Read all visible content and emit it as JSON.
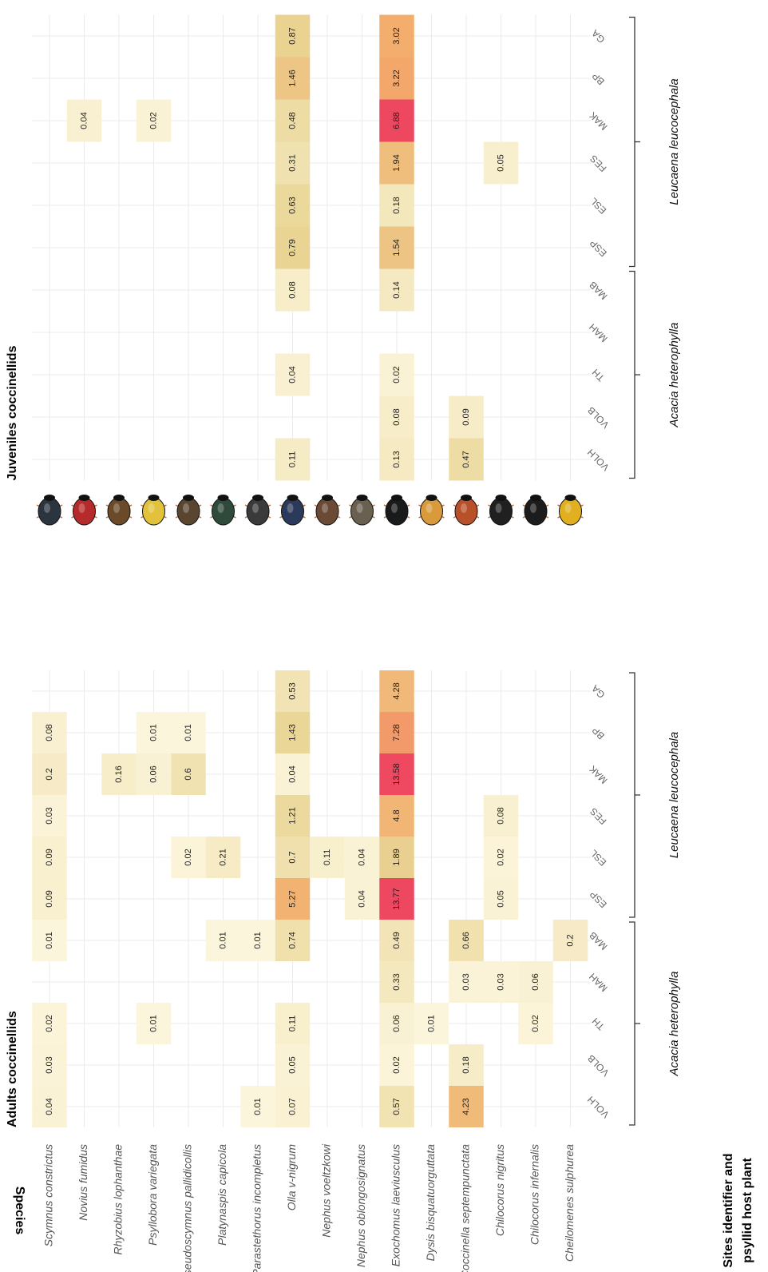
{
  "chart_data": {
    "type": "heatmap",
    "y_label": "Species",
    "x_label": [
      "Sites identifier  and",
      "psyllid host plant"
    ],
    "categories": [
      "Scymnus constrictus",
      "Novius fumidus",
      "Rhyzobius lophanthae",
      "Psyllobora variegata",
      "Pseudoscymnus pallidicollis",
      "Platynaspis capicola",
      "Parastethorus incompletus",
      "Olla v-nigrum",
      "Nephus voeltzkowi",
      "Nephus oblongosignatus",
      "Exochomus laeviusculus",
      "Dysis bisquatuorguttata",
      "Coccinella septempunctata",
      "Chilocorus nigritus",
      "Chilocorus infernalis",
      "Cheilomenes sulphurea"
    ],
    "color_scale": [
      "#fdf8e2",
      "#e9d594",
      "#f3ac6c",
      "#ee4760"
    ],
    "panels": [
      {
        "title": "Adults coccinellids",
        "groups": [
          {
            "name": "Acacia heterophylla",
            "sites": [
              "VOLH",
              "VOLB",
              "TH",
              "MAH",
              "MAB"
            ]
          },
          {
            "name": "Leucaena leucocephala",
            "sites": [
              "ESP",
              "ESL",
              "FES",
              "MAK",
              "BP",
              "GA"
            ]
          }
        ],
        "values": [
          [
            0.04,
            0.03,
            0.02,
            null,
            0.01,
            0.09,
            0.09,
            0.03,
            0.2,
            0.08,
            null
          ],
          [
            null,
            null,
            null,
            null,
            null,
            null,
            null,
            null,
            null,
            null,
            null
          ],
          [
            null,
            null,
            null,
            null,
            null,
            null,
            null,
            null,
            0.16,
            null,
            null
          ],
          [
            null,
            null,
            0.01,
            null,
            null,
            null,
            null,
            null,
            0.06,
            0.01,
            null
          ],
          [
            null,
            null,
            null,
            null,
            null,
            null,
            0.02,
            null,
            0.6,
            0.01,
            null
          ],
          [
            null,
            null,
            null,
            null,
            0.01,
            null,
            0.21,
            null,
            null,
            null,
            null
          ],
          [
            0.01,
            null,
            null,
            null,
            0.01,
            null,
            null,
            null,
            null,
            null,
            null
          ],
          [
            0.07,
            0.05,
            0.11,
            null,
            0.74,
            5.27,
            0.7,
            1.21,
            0.04,
            1.43,
            0.53
          ],
          [
            null,
            null,
            null,
            null,
            null,
            null,
            0.11,
            null,
            null,
            null,
            null
          ],
          [
            null,
            null,
            null,
            null,
            null,
            0.04,
            0.04,
            null,
            null,
            null,
            null
          ],
          [
            0.57,
            0.02,
            0.06,
            0.33,
            0.49,
            13.77,
            1.89,
            4.8,
            13.58,
            7.28,
            4.28
          ],
          [
            null,
            null,
            0.01,
            null,
            null,
            null,
            null,
            null,
            null,
            null,
            null
          ],
          [
            4.23,
            0.18,
            null,
            0.03,
            0.66,
            null,
            null,
            null,
            null,
            null,
            null
          ],
          [
            null,
            null,
            null,
            0.03,
            null,
            0.05,
            0.02,
            0.08,
            null,
            null,
            null
          ],
          [
            null,
            null,
            0.02,
            0.06,
            null,
            null,
            null,
            null,
            null,
            null,
            null
          ],
          [
            null,
            null,
            null,
            null,
            0.2,
            null,
            null,
            null,
            null,
            null,
            null
          ]
        ]
      },
      {
        "title": "Juveniles coccinellids",
        "groups": [
          {
            "name": "Acacia heterophylla",
            "sites": [
              "VOLH",
              "VOLB",
              "TH",
              "MAH",
              "MAB"
            ]
          },
          {
            "name": "Leucaena leucocephala",
            "sites": [
              "ESP",
              "ESL",
              "FES",
              "MAK",
              "BP",
              "GA"
            ]
          }
        ],
        "values": [
          [
            null,
            null,
            null,
            null,
            null,
            null,
            null,
            null,
            null,
            null,
            null
          ],
          [
            null,
            null,
            null,
            null,
            null,
            null,
            null,
            null,
            0.04,
            null,
            null
          ],
          [
            null,
            null,
            null,
            null,
            null,
            null,
            null,
            null,
            null,
            null,
            null
          ],
          [
            null,
            null,
            null,
            null,
            null,
            null,
            null,
            null,
            0.02,
            null,
            null
          ],
          [
            null,
            null,
            null,
            null,
            null,
            null,
            null,
            null,
            null,
            null,
            null
          ],
          [
            null,
            null,
            null,
            null,
            null,
            null,
            null,
            null,
            null,
            null,
            null
          ],
          [
            null,
            null,
            null,
            null,
            null,
            null,
            null,
            null,
            null,
            null,
            null
          ],
          [
            0.11,
            null,
            0.04,
            null,
            0.08,
            0.79,
            0.63,
            0.31,
            0.48,
            1.46,
            0.87
          ],
          [
            null,
            null,
            null,
            null,
            null,
            null,
            null,
            null,
            null,
            null,
            null
          ],
          [
            null,
            null,
            null,
            null,
            null,
            null,
            null,
            null,
            null,
            null,
            null
          ],
          [
            0.13,
            0.08,
            0.02,
            null,
            0.14,
            1.54,
            0.18,
            1.94,
            6.88,
            3.22,
            3.02
          ],
          [
            null,
            null,
            null,
            null,
            null,
            null,
            null,
            null,
            null,
            null,
            null
          ],
          [
            0.47,
            0.09,
            null,
            null,
            null,
            null,
            null,
            null,
            null,
            null,
            null
          ],
          [
            null,
            null,
            null,
            null,
            null,
            null,
            null,
            0.05,
            null,
            null,
            null
          ],
          [
            null,
            null,
            null,
            null,
            null,
            null,
            null,
            null,
            null,
            null,
            null
          ],
          [
            null,
            null,
            null,
            null,
            null,
            null,
            null,
            null,
            null,
            null,
            null
          ]
        ]
      }
    ]
  }
}
